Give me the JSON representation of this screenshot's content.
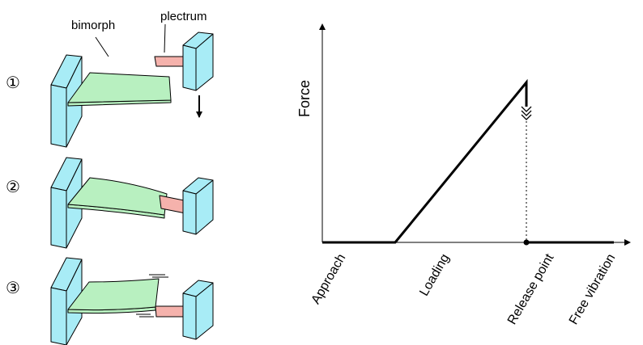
{
  "diagram": {
    "labels": {
      "bimorph": "bimorph",
      "plectrum": "plectrum"
    },
    "steps": [
      "①",
      "②",
      "③"
    ],
    "colors": {
      "clamp": "#a8ecf6",
      "bimorph": "#b8f0c0",
      "plectrum": "#f5b2ac",
      "outline": "#000000"
    }
  },
  "chart_data": {
    "type": "line",
    "ylabel": "Force",
    "phases": [
      "Approach",
      "Loading",
      "Release point",
      "Free vibration"
    ],
    "series": [
      {
        "points": [
          {
            "x": 0,
            "y": 0
          },
          {
            "x": 1,
            "y": 0
          },
          {
            "x": 2.8,
            "y": 1
          },
          {
            "x": 2.8,
            "y": 0
          },
          {
            "x": 4,
            "y": 0
          }
        ]
      }
    ],
    "annotations": [
      {
        "type": "release-arrow",
        "x": 2.8
      },
      {
        "type": "dotted-drop",
        "x": 2.8
      },
      {
        "type": "release-marker",
        "x": 2.8,
        "y": 0
      }
    ]
  }
}
